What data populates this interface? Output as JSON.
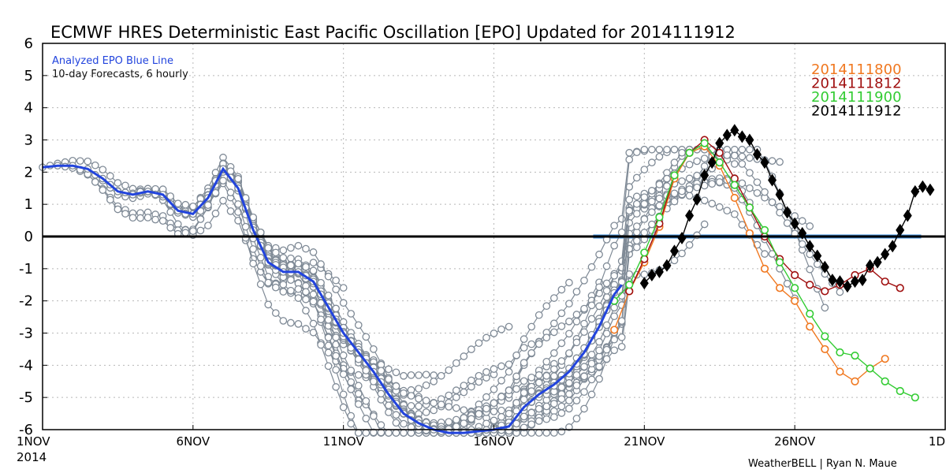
{
  "chart_data": {
    "type": "line",
    "title": "ECMWF HRES Deterministic East Pacific Oscillation [EPO] Updated for 2014111912",
    "xlabel": "",
    "ylabel": "",
    "ylim": [
      -6,
      6
    ],
    "xlim": [
      0,
      30
    ],
    "y_ticks": [
      "6",
      "5",
      "4",
      "3",
      "2",
      "1",
      "0",
      "-1",
      "-2",
      "-3",
      "-4",
      "-5",
      "-6"
    ],
    "y_tick_values": [
      6,
      5,
      4,
      3,
      2,
      1,
      0,
      -1,
      -2,
      -3,
      -4,
      -5,
      -6
    ],
    "x_ticks": [
      {
        "x": 0,
        "label": "1NOV"
      },
      {
        "x": 5,
        "label": "6NOV"
      },
      {
        "x": 10,
        "label": "11NOV"
      },
      {
        "x": 15,
        "label": "16NOV"
      },
      {
        "x": 20,
        "label": "21NOV"
      },
      {
        "x": 25,
        "label": "26NOV"
      },
      {
        "x": 30,
        "label": "1D"
      }
    ],
    "x_year_label": "2014",
    "x_unit": "days since 1 Nov 2014 00Z",
    "grid": true,
    "zero_line": true,
    "legend_position": "top-right",
    "annotations": {
      "analyzed_label": "Analyzed EPO Blue Line",
      "forecast_label": "10-day Forecasts, 6 hourly",
      "credit": "WeatherBELL | Ryan N. Maue"
    },
    "colors": {
      "analyzed": "#2244dd",
      "old_runs": "#7f8a96",
      "zero_line": "#000000",
      "ref_band": "#3b8fe0"
    },
    "analyzed": {
      "name": "Analyzed EPO Blue Line",
      "x": [
        0,
        0.5,
        1,
        1.5,
        2,
        2.5,
        3,
        3.5,
        4,
        4.5,
        5,
        5.5,
        6,
        6.5,
        7,
        7.5,
        8,
        8.5,
        9,
        9.5,
        10,
        10.5,
        11,
        11.5,
        12,
        12.5,
        13,
        13.5,
        14,
        14.5,
        15,
        15.5,
        16,
        16.5,
        17,
        17.5,
        18,
        18.5,
        19,
        19.25
      ],
      "y": [
        2.15,
        2.2,
        2.2,
        2.1,
        1.8,
        1.4,
        1.3,
        1.4,
        1.3,
        0.8,
        0.7,
        1.2,
        2.1,
        1.5,
        0.2,
        -0.8,
        -1.1,
        -1.1,
        -1.4,
        -2.2,
        -3.0,
        -3.6,
        -4.2,
        -4.9,
        -5.5,
        -5.8,
        -6.0,
        -6.1,
        -6.1,
        -6.05,
        -6.0,
        -5.9,
        -5.3,
        -4.9,
        -4.6,
        -4.2,
        -3.6,
        -2.8,
        -1.8,
        -1.5
      ]
    },
    "forecasts": [
      {
        "name": "2014111800",
        "color": "#f07820",
        "marker": "circle",
        "x": [
          19.0,
          19.5,
          20.0,
          20.5,
          21.0,
          21.5,
          22.0,
          22.5,
          23.0,
          23.5,
          24.0,
          24.5,
          25.0,
          25.5,
          26.0,
          26.5,
          27.0,
          27.5,
          28.0
        ],
        "y": [
          -2.9,
          -1.7,
          -0.8,
          0.3,
          1.8,
          2.6,
          2.8,
          2.2,
          1.2,
          0.1,
          -1.0,
          -1.6,
          -2.0,
          -2.8,
          -3.5,
          -4.2,
          -4.5,
          -4.1,
          -3.8
        ]
      },
      {
        "name": "2014111812",
        "color": "#a01010",
        "marker": "circle",
        "x": [
          19.5,
          20.0,
          20.5,
          21.0,
          21.5,
          22.0,
          22.5,
          23.0,
          23.5,
          24.0,
          24.5,
          25.0,
          25.5,
          26.0,
          26.5,
          27.0,
          27.5,
          28.0,
          28.5
        ],
        "y": [
          -1.7,
          -0.7,
          0.4,
          1.9,
          2.6,
          3.0,
          2.6,
          1.8,
          0.9,
          0.0,
          -0.7,
          -1.2,
          -1.5,
          -1.7,
          -1.5,
          -1.2,
          -1.0,
          -1.4,
          -1.6
        ]
      },
      {
        "name": "2014111900",
        "color": "#33cc33",
        "marker": "circle",
        "x": [
          19.0,
          19.5,
          20.0,
          20.5,
          21.0,
          21.5,
          22.0,
          22.5,
          23.0,
          23.5,
          24.0,
          24.5,
          25.0,
          25.5,
          26.0,
          26.5,
          27.0,
          27.5,
          28.0,
          28.5,
          29.0
        ],
        "y": [
          -2.0,
          -1.5,
          -0.5,
          0.6,
          1.9,
          2.6,
          2.9,
          2.3,
          1.6,
          0.9,
          0.2,
          -0.8,
          -1.6,
          -2.4,
          -3.1,
          -3.6,
          -3.7,
          -4.1,
          -4.5,
          -4.8,
          -5.0
        ]
      },
      {
        "name": "2014111912",
        "color": "#000000",
        "marker": "diamond",
        "x": [
          20.0,
          20.25,
          20.5,
          20.75,
          21.0,
          21.25,
          21.5,
          21.75,
          22.0,
          22.25,
          22.5,
          22.75,
          23.0,
          23.25,
          23.5,
          23.75,
          24.0,
          24.25,
          24.5,
          24.75,
          25.0,
          25.25,
          25.5,
          25.75,
          26.0,
          26.25,
          26.5,
          26.75,
          27.0,
          27.25,
          27.5,
          27.75,
          28.0,
          28.25,
          28.5,
          28.75,
          29.0,
          29.25,
          29.5
        ],
        "y": [
          -1.45,
          -1.2,
          -1.1,
          -0.9,
          -0.45,
          -0.05,
          0.65,
          1.15,
          1.9,
          2.3,
          2.9,
          3.15,
          3.3,
          3.1,
          3.0,
          2.55,
          2.3,
          1.75,
          1.3,
          0.75,
          0.4,
          0.1,
          -0.3,
          -0.6,
          -0.95,
          -1.35,
          -1.4,
          -1.55,
          -1.4,
          -1.35,
          -0.9,
          -0.8,
          -0.55,
          -0.3,
          0.2,
          0.65,
          1.4,
          1.55,
          1.45
        ]
      }
    ],
    "ref_band": {
      "x0": 18.3,
      "x1": 29.2,
      "y": 0
    }
  }
}
